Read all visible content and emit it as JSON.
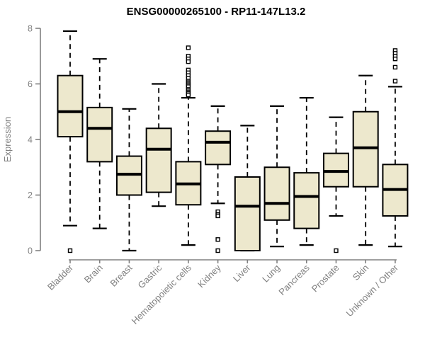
{
  "title": "ENSG00000265100 - RP11-147L13.2",
  "colors": {
    "box_fill": "#EDE8CD",
    "box_border": "#000000",
    "median": "#000000",
    "whisker": "#000000",
    "outlier_stroke": "#000000",
    "axis": "#808080",
    "label_text": "#808080",
    "title_text": "#000000",
    "background": "#FFFFFF"
  },
  "chart_data": {
    "type": "boxplot",
    "title": "ENSG00000265100 - RP11-147L13.2",
    "xlabel": "",
    "ylabel": "Expression",
    "ylim": [
      0,
      8
    ],
    "yticks": [
      0,
      2,
      4,
      6,
      8
    ],
    "grid": false,
    "legend": "none",
    "categories": [
      "Bladder",
      "Brain",
      "Breast",
      "Gastric",
      "Hematopoietic cells",
      "Kidney",
      "Liver",
      "Lung",
      "Pancreas",
      "Prostate",
      "Skin",
      "Unknown / Other"
    ],
    "boxes": [
      {
        "category": "Bladder",
        "whisker_low": 0.9,
        "q1": 4.1,
        "median": 5.0,
        "q3": 6.3,
        "whisker_high": 7.9,
        "outliers": [
          0.0
        ]
      },
      {
        "category": "Brain",
        "whisker_low": 0.8,
        "q1": 3.2,
        "median": 4.4,
        "q3": 5.15,
        "whisker_high": 6.9,
        "outliers": []
      },
      {
        "category": "Breast",
        "whisker_low": 0.0,
        "q1": 2.0,
        "median": 2.75,
        "q3": 3.4,
        "whisker_high": 5.1,
        "outliers": []
      },
      {
        "category": "Gastric",
        "whisker_low": 1.6,
        "q1": 2.1,
        "median": 3.65,
        "q3": 4.4,
        "whisker_high": 6.0,
        "outliers": []
      },
      {
        "category": "Hematopoietic cells",
        "whisker_low": 0.2,
        "q1": 1.65,
        "median": 2.4,
        "q3": 3.2,
        "whisker_high": 5.5,
        "outliers": [
          7.3,
          7.0,
          6.9,
          6.8,
          6.5,
          6.4,
          6.3,
          6.2,
          6.1,
          6.05,
          6.0,
          5.95,
          5.9,
          5.8,
          5.75,
          5.7,
          5.65,
          5.6
        ]
      },
      {
        "category": "Kidney",
        "whisker_low": 1.7,
        "q1": 3.1,
        "median": 3.9,
        "q3": 4.3,
        "whisker_high": 5.2,
        "outliers": [
          1.4,
          1.3,
          1.25,
          0.4,
          0.0
        ]
      },
      {
        "category": "Liver",
        "whisker_low": 0.0,
        "q1": 0.0,
        "median": 1.6,
        "q3": 2.65,
        "whisker_high": 4.5,
        "outliers": []
      },
      {
        "category": "Lung",
        "whisker_low": 0.15,
        "q1": 1.1,
        "median": 1.7,
        "q3": 3.0,
        "whisker_high": 5.2,
        "outliers": []
      },
      {
        "category": "Pancreas",
        "whisker_low": 0.2,
        "q1": 0.8,
        "median": 1.95,
        "q3": 2.8,
        "whisker_high": 5.5,
        "outliers": []
      },
      {
        "category": "Prostate",
        "whisker_low": 1.25,
        "q1": 2.3,
        "median": 2.85,
        "q3": 3.5,
        "whisker_high": 4.8,
        "outliers": [
          0.0
        ]
      },
      {
        "category": "Skin",
        "whisker_low": 0.2,
        "q1": 2.3,
        "median": 3.7,
        "q3": 5.0,
        "whisker_high": 6.3,
        "outliers": []
      },
      {
        "category": "Unknown / Other",
        "whisker_low": 0.15,
        "q1": 1.25,
        "median": 2.2,
        "q3": 3.1,
        "whisker_high": 5.9,
        "outliers": [
          7.2,
          7.1,
          7.0,
          6.9,
          6.6,
          6.1
        ]
      }
    ]
  }
}
